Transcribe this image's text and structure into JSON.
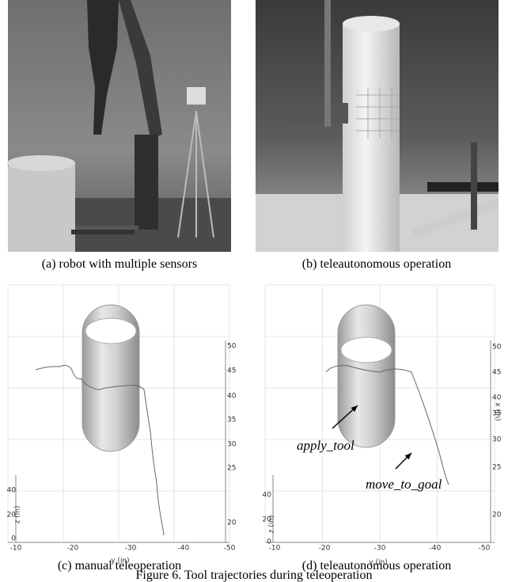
{
  "panels": [
    {
      "caption": "(a) robot with multiple sensors"
    },
    {
      "caption": "(b) teleautonomous operation"
    }
  ],
  "plots": [
    {
      "caption": "(c) manual teleoperation",
      "y_axis_label": "y (in)",
      "z_axis_label": "z (in)",
      "right_ticks": [
        "50",
        "45",
        "40",
        "35",
        "30",
        "25",
        "20"
      ],
      "left_ticks": [
        "40",
        "20",
        "0"
      ],
      "bottom_ticks": [
        "-10",
        "-20",
        "-30",
        "-40",
        "-50"
      ]
    },
    {
      "caption": "(d) teleautonomous operation",
      "y_axis_label": "y (in)",
      "z_axis_label": "z (in)",
      "x_axis_label": "x (in)",
      "right_ticks": [
        "50",
        "45",
        "40",
        "35",
        "30",
        "25",
        "20"
      ],
      "left_ticks": [
        "40",
        "20",
        "0"
      ],
      "bottom_ticks": [
        "-10",
        "-20",
        "-30",
        "-40",
        "-50"
      ],
      "annotations": [
        "apply_tool",
        "move_to_goal"
      ]
    }
  ],
  "figure_caption": "Figure 6.   Tool trajectories during teleoperation"
}
